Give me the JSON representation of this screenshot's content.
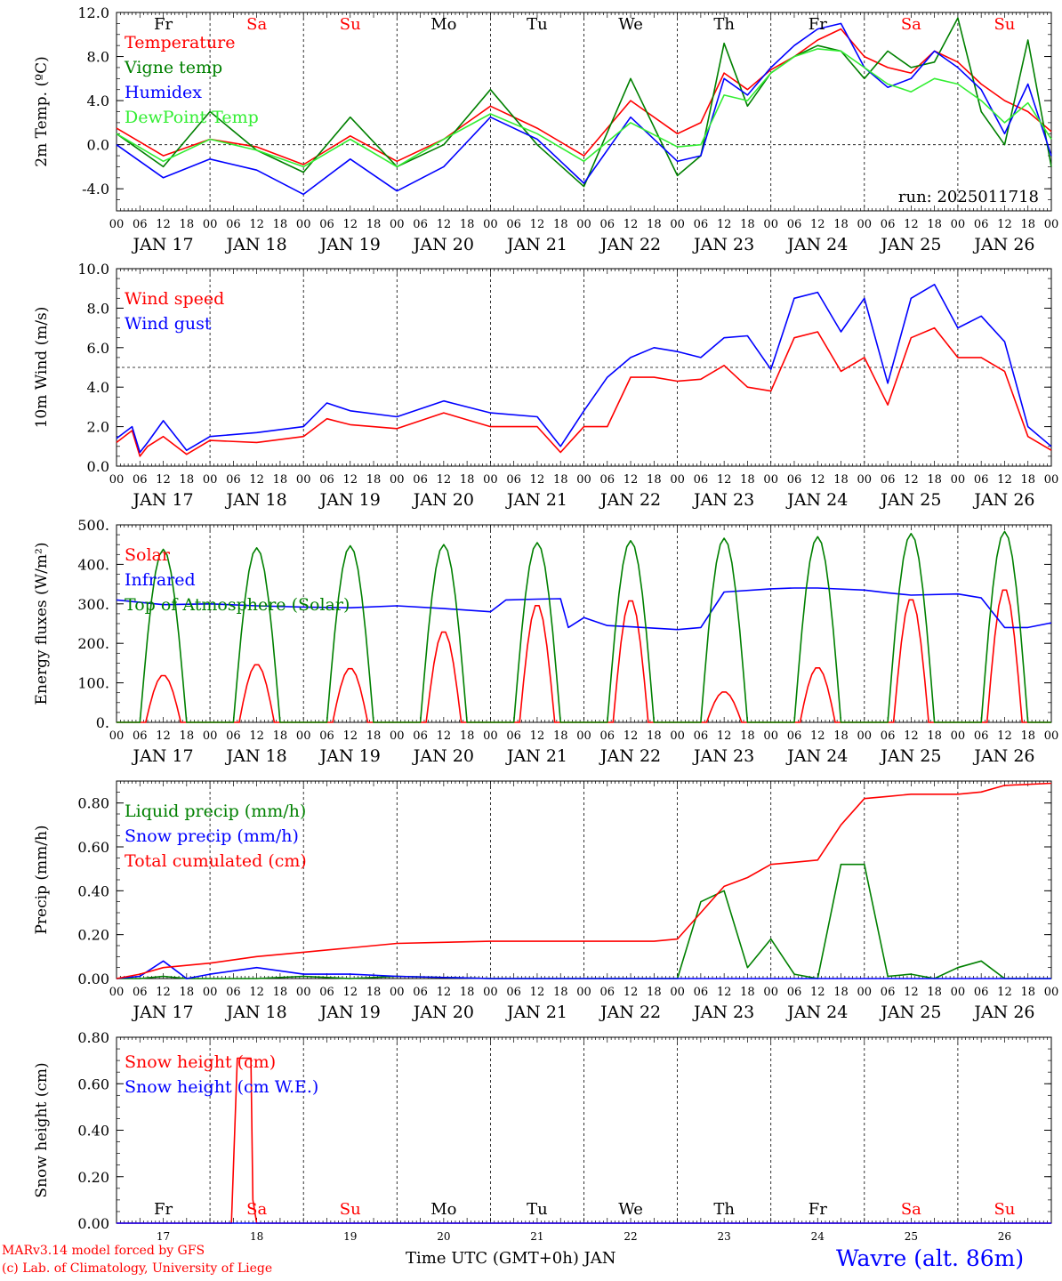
{
  "colors": {
    "red": "#ff0000",
    "green": "#008000",
    "blue": "#0000ff",
    "lightgreen": "#33ee33",
    "axis": "#000000"
  },
  "footer": {
    "model": "MARv3.14 model forced by GFS",
    "copyright": "(c) Lab. of Climatology, University of Liege",
    "xlabel": "Time UTC (GMT+0h) JAN",
    "station": "Wavre (alt. 86m)"
  },
  "run_label": "run: 2025011718",
  "day_tick_labels": [
    "00",
    "06",
    "12",
    "18"
  ],
  "date_labels": [
    "JAN 17",
    "JAN 18",
    "JAN 19",
    "JAN 20",
    "JAN 21",
    "JAN 22",
    "JAN 23",
    "JAN 24",
    "JAN 25",
    "JAN 26"
  ],
  "weekdays": [
    {
      "label": "Fr",
      "weekend": false
    },
    {
      "label": "Sa",
      "weekend": true
    },
    {
      "label": "Su",
      "weekend": true
    },
    {
      "label": "Mo",
      "weekend": false
    },
    {
      "label": "Tu",
      "weekend": false
    },
    {
      "label": "We",
      "weekend": false
    },
    {
      "label": "Th",
      "weekend": false
    },
    {
      "label": "Fr",
      "weekend": false
    },
    {
      "label": "Sa",
      "weekend": true
    },
    {
      "label": "Su",
      "weekend": true
    }
  ],
  "bottom_day_numbers": [
    "17",
    "18",
    "19",
    "20",
    "21",
    "22",
    "23",
    "24",
    "25",
    "26"
  ],
  "chart_data": [
    {
      "id": "temp",
      "type": "line",
      "ylabel": "2m Temp. (ºC)",
      "ylim": [
        -6,
        12
      ],
      "yticks": [
        -4,
        0,
        4,
        8,
        12
      ],
      "ytick_labels": [
        "-4.0",
        "0.0",
        "4.0",
        "8.0",
        "12.0"
      ],
      "ref_line": 0,
      "weekday_row": "top",
      "legend_placement": "left",
      "x": [
        0,
        12,
        24,
        36,
        48,
        60,
        72,
        84,
        96,
        108,
        120,
        132,
        144,
        150,
        156,
        162,
        168,
        174,
        180,
        186,
        192,
        198,
        204,
        210,
        216,
        222,
        228,
        234,
        240
      ],
      "series": [
        {
          "name": "Temperature",
          "color": "red",
          "values": [
            1.5,
            -1,
            0.5,
            -0.2,
            -1.8,
            0.8,
            -1.5,
            0.5,
            3.5,
            1.5,
            -1,
            4,
            1,
            2,
            6.5,
            5,
            6.8,
            8,
            9.5,
            10.5,
            8,
            7,
            6.5,
            8.5,
            7.5,
            5.5,
            4,
            3,
            1.2
          ]
        },
        {
          "name": "Vigne temp",
          "color": "green",
          "values": [
            1,
            -2,
            3,
            -0.5,
            -2.5,
            2.5,
            -2,
            0,
            5,
            0,
            -3.8,
            6,
            -2.8,
            -1,
            9.2,
            3.5,
            6.5,
            8,
            9,
            8.5,
            6,
            8.5,
            7,
            7.5,
            11.5,
            3,
            0,
            9.5,
            -2
          ]
        },
        {
          "name": "Humidex",
          "color": "blue",
          "values": [
            0,
            -3,
            -1.3,
            -2.3,
            -4.5,
            -1.3,
            -4.2,
            -2,
            2.5,
            0.5,
            -3.5,
            2.5,
            -1.5,
            -1,
            6,
            4.5,
            7,
            9,
            10.5,
            11,
            7,
            5.2,
            6,
            8.5,
            7,
            5,
            1,
            5.5,
            -1
          ]
        },
        {
          "name": "DewPoint Temp",
          "color": "lightgreen",
          "values": [
            1,
            -1.5,
            0.5,
            -0.5,
            -2,
            0.5,
            -2,
            0.5,
            2.8,
            1,
            -1.5,
            2,
            -0.2,
            0,
            4.5,
            4,
            6.5,
            8,
            8.7,
            8.5,
            7,
            5.5,
            4.8,
            6,
            5.5,
            4,
            2,
            3.8,
            0.5
          ]
        }
      ]
    },
    {
      "id": "wind",
      "type": "line",
      "ylabel": "10m Wind (m/s)",
      "ylim": [
        0,
        10
      ],
      "yticks": [
        0,
        2,
        4,
        6,
        8,
        10
      ],
      "ytick_labels": [
        "0.0",
        "2.0",
        "4.0",
        "6.0",
        "8.0",
        "10.0"
      ],
      "ref_line": 5,
      "legend_placement": "left",
      "x": [
        0,
        4,
        6,
        8,
        12,
        18,
        24,
        36,
        48,
        54,
        60,
        72,
        84,
        96,
        108,
        114,
        120,
        126,
        132,
        138,
        144,
        150,
        156,
        162,
        168,
        174,
        180,
        186,
        192,
        198,
        204,
        210,
        216,
        222,
        228,
        234,
        240
      ],
      "series": [
        {
          "name": "Wind speed",
          "color": "red",
          "values": [
            1.2,
            1.8,
            0.5,
            1,
            1.5,
            0.6,
            1.3,
            1.2,
            1.5,
            2.4,
            2.1,
            1.9,
            2.7,
            2,
            2,
            0.7,
            2,
            2,
            4.5,
            4.5,
            4.3,
            4.4,
            5.1,
            4,
            3.8,
            6.5,
            6.8,
            4.8,
            5.5,
            3.1,
            6.5,
            7,
            5.5,
            5.5,
            4.8,
            1.5,
            0.8
          ]
        },
        {
          "name": "Wind gust",
          "color": "blue",
          "values": [
            1.4,
            2,
            0.7,
            1.2,
            2.3,
            0.8,
            1.5,
            1.7,
            2,
            3.2,
            2.8,
            2.5,
            3.3,
            2.7,
            2.5,
            1,
            2.8,
            4.5,
            5.5,
            6,
            5.8,
            5.5,
            6.5,
            6.6,
            4.9,
            8.5,
            8.8,
            6.8,
            8.5,
            4.2,
            8.5,
            9.2,
            7,
            7.6,
            6.3,
            2,
            1
          ]
        }
      ]
    },
    {
      "id": "energy",
      "type": "line",
      "ylabel": "Energy fluxes (W/m²)",
      "ylim": [
        0,
        500
      ],
      "yticks": [
        0,
        100,
        200,
        300,
        400,
        500
      ],
      "ytick_labels": [
        "0.",
        "100.",
        "200.",
        "300.",
        "400.",
        "500."
      ],
      "legend_placement": "left",
      "noon_peaks": {
        "Solar": [
          120,
          148,
          138,
          232,
          300,
          312,
          78,
          140,
          315,
          340
        ],
        "Top of Atmosphere (Solar)": [
          438,
          442,
          447,
          450,
          455,
          460,
          466,
          470,
          478,
          483
        ]
      },
      "infrared_x": [
        0,
        12,
        24,
        36,
        48,
        60,
        72,
        84,
        96,
        100,
        108,
        114,
        116,
        120,
        126,
        132,
        144,
        150,
        156,
        168,
        174,
        180,
        192,
        198,
        204,
        216,
        222,
        228,
        234,
        240
      ],
      "series": [
        {
          "name": "Solar",
          "color": "red"
        },
        {
          "name": "Infrared",
          "color": "blue",
          "values": [
            310,
            298,
            300,
            295,
            292,
            290,
            295,
            288,
            280,
            310,
            312,
            313,
            240,
            265,
            245,
            242,
            235,
            240,
            330,
            338,
            340,
            340,
            335,
            328,
            322,
            325,
            315,
            240,
            240,
            252
          ]
        },
        {
          "name": "Top of Atmosphere (Solar)",
          "color": "green"
        }
      ]
    },
    {
      "id": "precip",
      "type": "line",
      "ylabel": "Precip (mm/h)",
      "ylim": [
        0,
        0.9
      ],
      "yticks": [
        0,
        0.2,
        0.4,
        0.6,
        0.8
      ],
      "ytick_labels": [
        "0.00",
        "0.20",
        "0.40",
        "0.60",
        "0.80"
      ],
      "legend_placement": "left",
      "x": [
        0,
        6,
        12,
        18,
        24,
        36,
        48,
        60,
        72,
        96,
        120,
        138,
        144,
        150,
        156,
        162,
        168,
        174,
        180,
        186,
        192,
        198,
        204,
        210,
        216,
        222,
        228,
        240
      ],
      "series": [
        {
          "name": "Liquid precip (mm/h)",
          "color": "green",
          "values": [
            0,
            0,
            0.01,
            0,
            0,
            0,
            0.01,
            0,
            0.01,
            0,
            0,
            0,
            0,
            0.35,
            0.4,
            0.05,
            0.18,
            0.02,
            0,
            0.52,
            0.52,
            0.01,
            0.02,
            0,
            0.05,
            0.08,
            0,
            0
          ]
        },
        {
          "name": "Snow precip (mm/h)",
          "color": "blue",
          "values": [
            0,
            0.01,
            0.08,
            0,
            0.02,
            0.05,
            0.02,
            0.02,
            0.01,
            0,
            0,
            0,
            0,
            0,
            0,
            0,
            0,
            0,
            0,
            0,
            0,
            0,
            0,
            0,
            0,
            0,
            0,
            0
          ]
        },
        {
          "name": "Total cumulated (cm)",
          "color": "red",
          "values": [
            0,
            0.02,
            0.05,
            0.06,
            0.07,
            0.1,
            0.12,
            0.14,
            0.16,
            0.17,
            0.17,
            0.17,
            0.18,
            0.3,
            0.42,
            0.46,
            0.52,
            0.53,
            0.54,
            0.7,
            0.82,
            0.83,
            0.84,
            0.84,
            0.84,
            0.85,
            0.88,
            0.89
          ]
        }
      ]
    },
    {
      "id": "snow",
      "type": "line",
      "ylabel": "Snow height (cm)",
      "ylim": [
        0,
        0.8
      ],
      "yticks": [
        0,
        0.2,
        0.4,
        0.6,
        0.8
      ],
      "ytick_labels": [
        "0.00",
        "0.20",
        "0.40",
        "0.60",
        "0.80"
      ],
      "weekday_row": "bottom",
      "legend_placement": "left",
      "x": [
        0,
        29.5,
        31,
        34.5,
        35,
        36,
        240
      ],
      "series": [
        {
          "name": "Snow height (cm)",
          "color": "red",
          "values": [
            0,
            0,
            0.71,
            0.71,
            0.1,
            0,
            0
          ]
        },
        {
          "name": "Snow height (cm W.E.)",
          "color": "blue",
          "values": [
            0,
            0,
            0,
            0,
            0,
            0,
            0
          ]
        }
      ]
    }
  ]
}
